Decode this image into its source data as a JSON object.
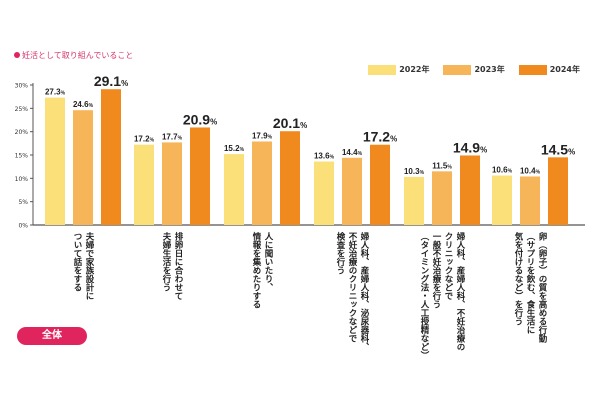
{
  "title": "妊活として取り組んでいること",
  "badge": "全体",
  "chart_data": {
    "type": "bar",
    "ylim": [
      0,
      30
    ],
    "yticks": [
      "0%",
      "5%",
      "10%",
      "15%",
      "20%",
      "25%",
      "30%"
    ],
    "legend_placement": "top-right",
    "categories": [
      "夫婦で家族設計に\nついて話をする",
      "排卵日に合わせて\n夫婦生活を行う",
      "人に聞いたり、\n情報を集めたりする",
      "婦人科、産婦人科、泌尿器科、\n不妊治療のクリニックなどで\n検査を行う",
      "婦人科、産婦人科、不妊治療の\nクリニックなどで\n一般不妊治療を行う\n（タイミング法・人工授精など）",
      "卵（卵子）の質を高める行動\n（サプリを飲む、食生活に\n気を付けるなど）を行う"
    ],
    "series": [
      {
        "name": "2022年",
        "color": "#fbe07a",
        "values": [
          27.3,
          17.2,
          15.2,
          13.6,
          10.3,
          10.6
        ]
      },
      {
        "name": "2023年",
        "color": "#f7b55a",
        "values": [
          24.6,
          17.7,
          17.9,
          14.4,
          11.5,
          10.4
        ]
      },
      {
        "name": "2024年",
        "color": "#f08a1e",
        "values": [
          29.1,
          20.9,
          20.1,
          17.2,
          14.9,
          14.5
        ]
      }
    ]
  }
}
